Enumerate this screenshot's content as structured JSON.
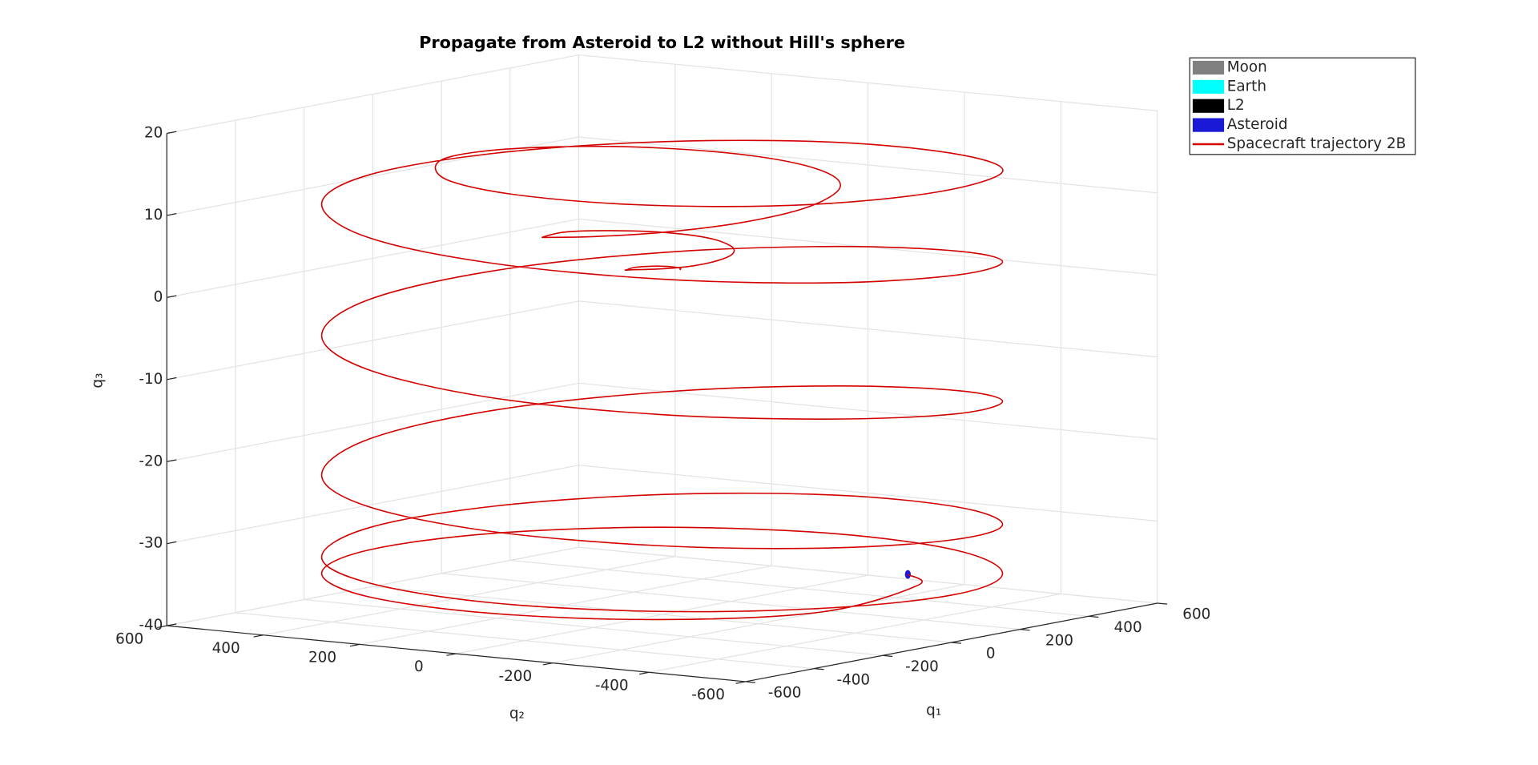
{
  "chart_data": {
    "type": "line3d",
    "title": "Propagate from Asteroid to L2 without Hill's sphere",
    "xlabel": "q₁",
    "ylabel": "q₂",
    "zlabel": "q₃",
    "xlim": [
      -600,
      600
    ],
    "xticks": [
      -600,
      -400,
      -200,
      0,
      200,
      400,
      600
    ],
    "ylim": [
      -600,
      600
    ],
    "yticks": [
      -600,
      -400,
      -200,
      0,
      200,
      400,
      600
    ],
    "zlim": [
      -40,
      20
    ],
    "zticks": [
      -40,
      -30,
      -20,
      -10,
      0,
      10,
      20
    ],
    "grid": true,
    "legend_location": "northeastoutside",
    "series": [
      {
        "name": "Moon",
        "color": "#808080",
        "style": "patch"
      },
      {
        "name": "Earth",
        "color": "#00ffff",
        "style": "patch"
      },
      {
        "name": "L2",
        "color": "#000000",
        "style": "patch"
      },
      {
        "name": "Asteroid",
        "color": "#1a1ad6",
        "style": "patch",
        "x": [
          147
        ],
        "y": [
          -405
        ],
        "z": [
          -34
        ]
      },
      {
        "name": "Spacecraft trajectory 2B",
        "color": "#d40000",
        "style": "line",
        "x": [
          147,
          44,
          -233,
          -471,
          -573,
          -521,
          -330,
          -50,
          243,
          471,
          573,
          521,
          330,
          50,
          -243,
          -471,
          -573,
          -521,
          -330,
          -50,
          243,
          471,
          573,
          521,
          330,
          50,
          -243,
          -471,
          -573,
          -521,
          -330,
          -50,
          243,
          471,
          573,
          521,
          330,
          50,
          -243,
          -471,
          -573,
          -521,
          -330,
          -50,
          243,
          471,
          573,
          521,
          330,
          50,
          -243,
          -471,
          -573,
          -521,
          -330,
          -50,
          243,
          471,
          573,
          521,
          330,
          47,
          -216,
          -391,
          -443,
          -373,
          -218,
          -32,
          149,
          278,
          326,
          284,
          172,
          25,
          -113,
          -205,
          -232,
          -197,
          -115,
          -16,
          73,
          131,
          146,
          120,
          69,
          10,
          -42,
          -74,
          -80,
          -63,
          -34,
          -5,
          21,
          37,
          40,
          32,
          17
        ],
        "y": [
          -405,
          -498,
          -498,
          -330,
          -50,
          243,
          471,
          573,
          521,
          330,
          50,
          -243,
          -471,
          -573,
          -521,
          -330,
          -50,
          243,
          471,
          573,
          521,
          330,
          50,
          -243,
          -471,
          -573,
          -521,
          -330,
          -50,
          243,
          471,
          573,
          521,
          330,
          50,
          -243,
          -471,
          -573,
          -521,
          -330,
          -50,
          243,
          471,
          573,
          521,
          330,
          50,
          -243,
          -471,
          -573,
          -521,
          -330,
          -50,
          243,
          471,
          573,
          521,
          330,
          50,
          -243,
          -471,
          -540,
          -462,
          -274,
          -39,
          174,
          311,
          366,
          320,
          195,
          28,
          -132,
          -246,
          -282,
          -242,
          -144,
          -20,
          92,
          164,
          186,
          157,
          92,
          13,
          -56,
          -98,
          -110,
          -91,
          -52,
          -7,
          30,
          49,
          55,
          45,
          26,
          3,
          -15,
          -25
        ],
        "z": [
          -34,
          -34,
          -35,
          -35,
          -35,
          -35,
          -35,
          -35,
          -35,
          -35,
          -35,
          -35,
          -35,
          -34.7,
          -34.3,
          -34,
          -33.7,
          -33.3,
          -33,
          -32.3,
          -31.7,
          -31,
          -30.3,
          -29.7,
          -29,
          -28,
          -27,
          -26,
          -25,
          -24,
          -23,
          -21.5,
          -20,
          -18.5,
          -17,
          -15.5,
          -14,
          -12.7,
          -11.3,
          -10,
          -8.7,
          -7.3,
          -6,
          -4.5,
          -3,
          -1.5,
          0,
          1.5,
          3,
          4.2,
          5.3,
          6.5,
          7.7,
          8.8,
          10,
          10.7,
          11.3,
          12,
          12.7,
          13.3,
          14,
          14.2,
          14.3,
          14.5,
          14.7,
          14.8,
          15,
          14.5,
          14,
          13.5,
          13,
          12.5,
          12,
          11,
          10,
          9,
          8,
          7,
          6,
          5.7,
          5.3,
          5,
          4.7,
          4.3,
          4,
          3.7,
          3.3,
          3,
          2.7,
          2.3,
          2,
          2,
          2,
          2,
          2,
          2,
          2
        ]
      }
    ]
  }
}
